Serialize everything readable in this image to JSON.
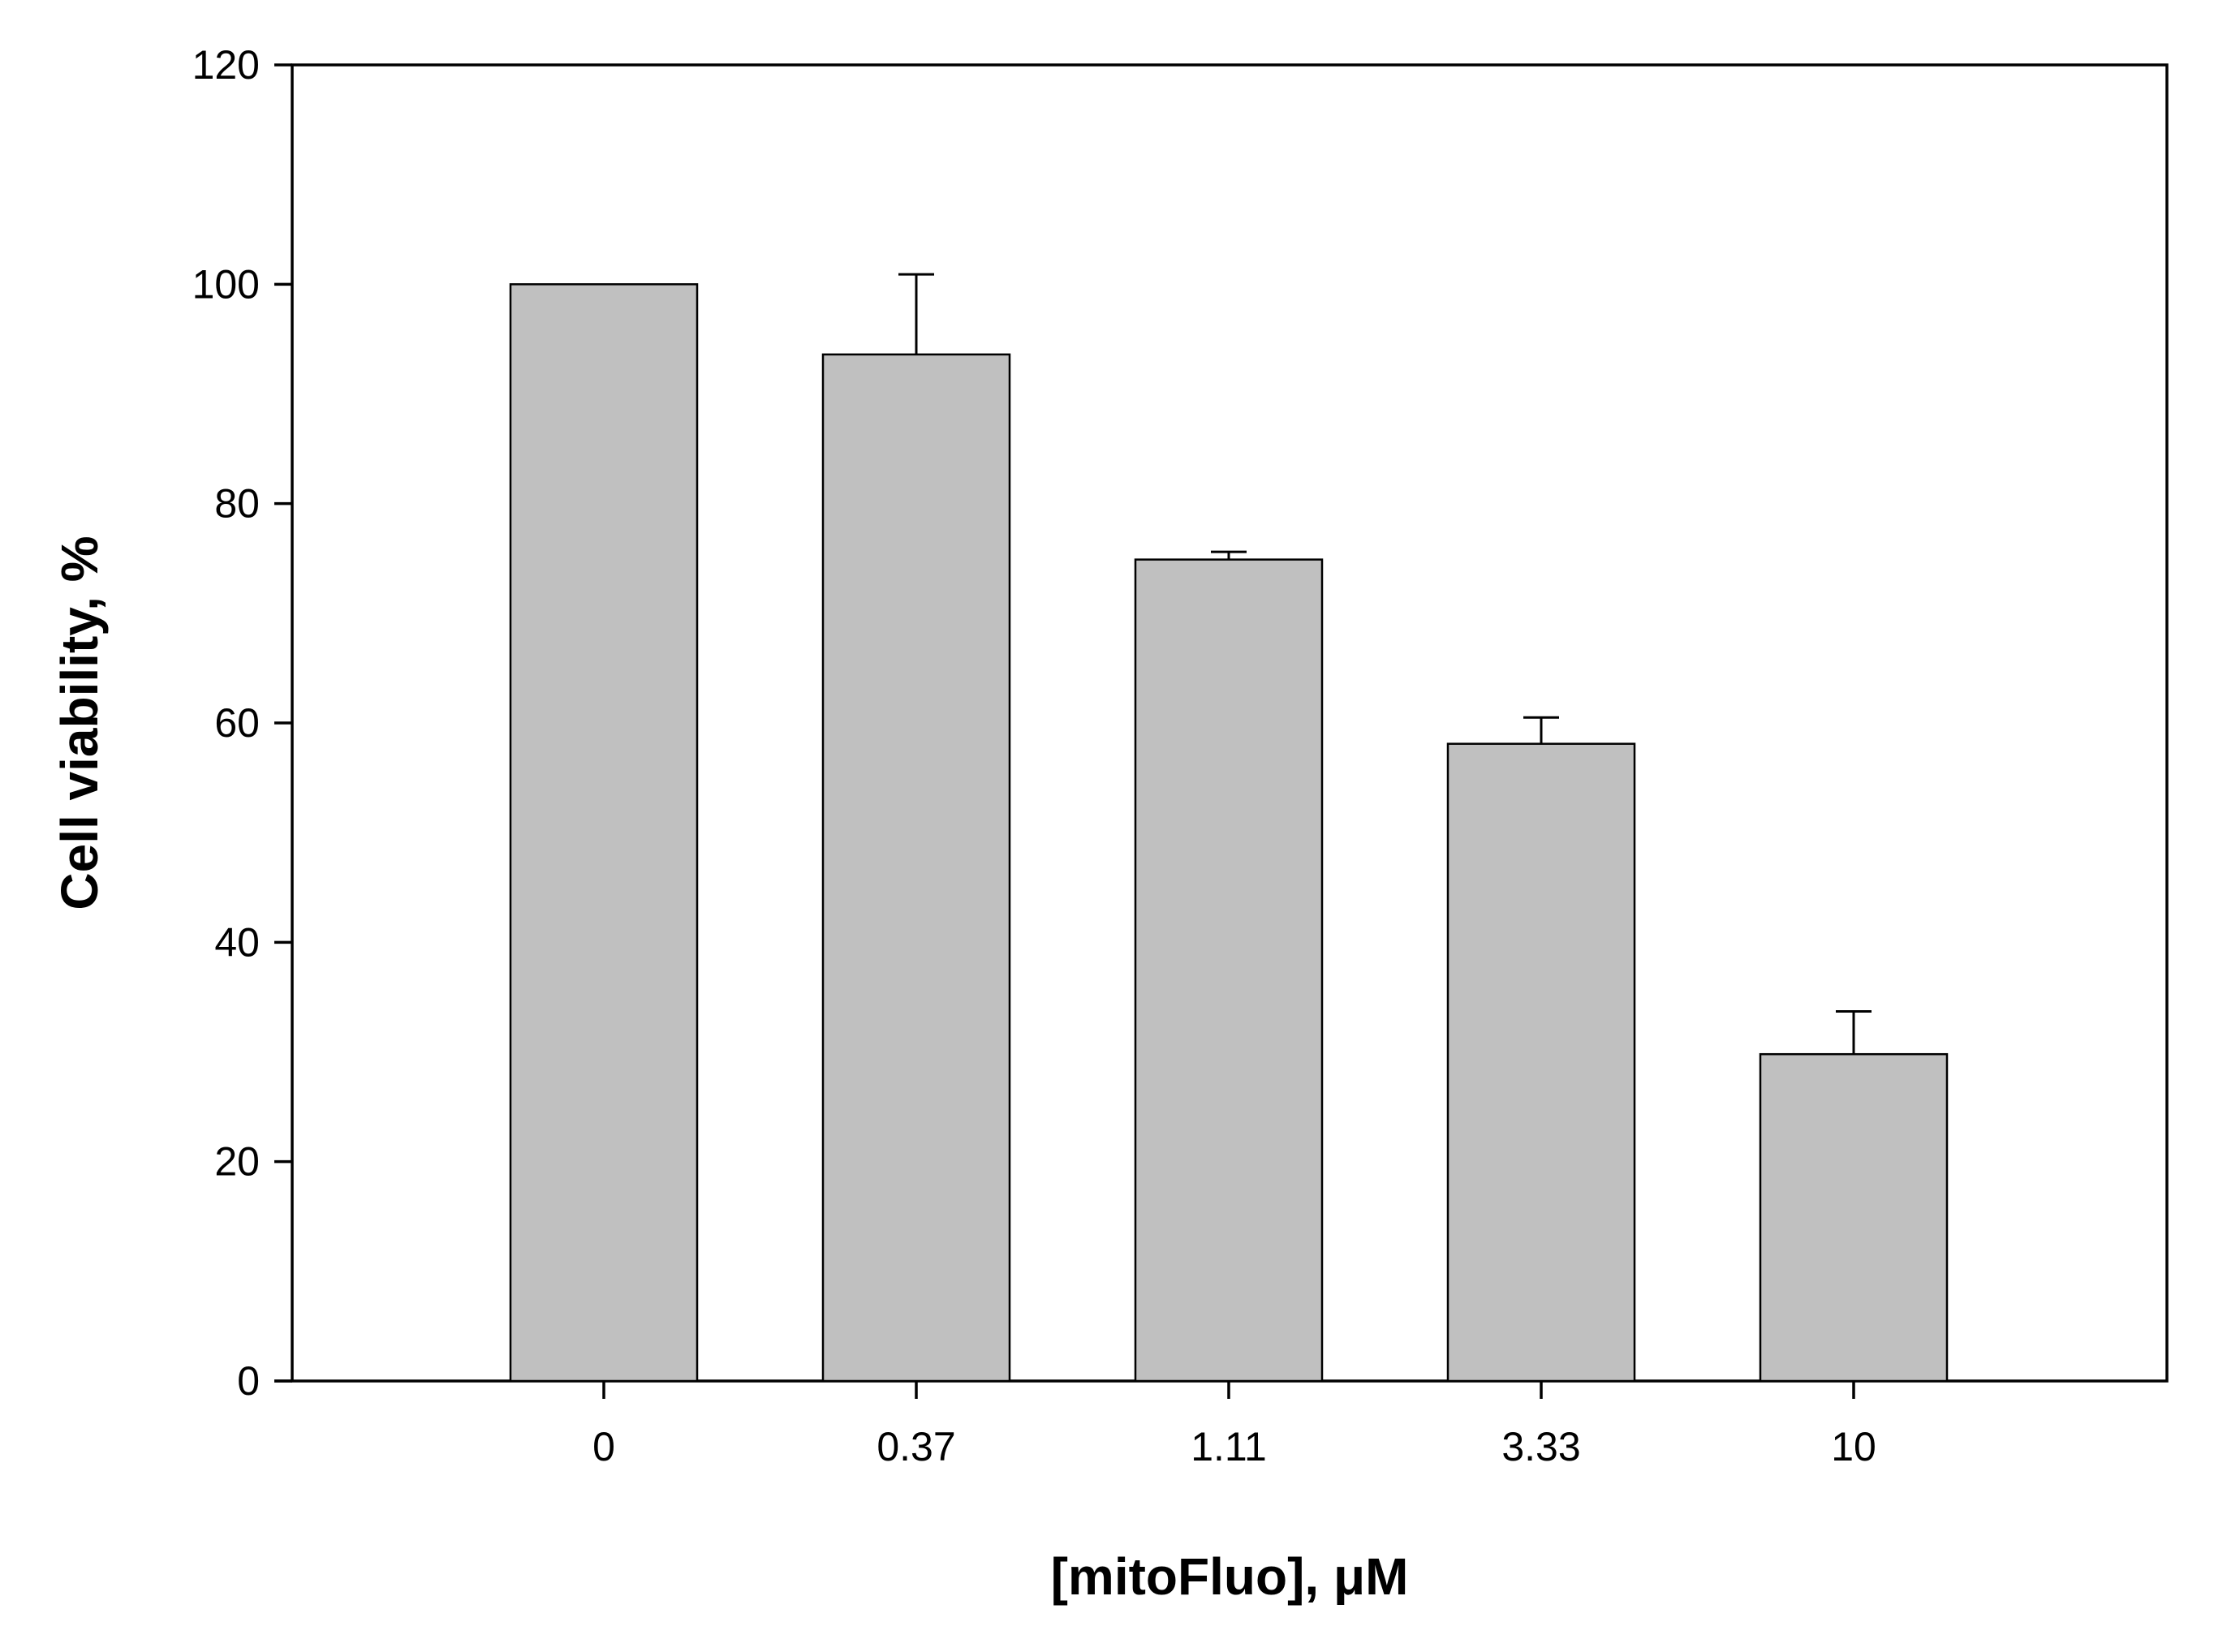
{
  "chart_data": {
    "type": "bar",
    "categories": [
      "0",
      "0.37",
      "1.11",
      "3.33",
      "10"
    ],
    "series": [
      {
        "values": [
          100,
          93.6,
          74.9,
          58.1,
          29.8
        ],
        "error_upper": [
          0,
          7.3,
          0.7,
          2.4,
          3.9
        ]
      }
    ],
    "xlabel": "[mitoFluo], μM",
    "ylabel": "Cell viability, %",
    "ylim": [
      0,
      120
    ],
    "yticks": [
      0,
      20,
      40,
      60,
      80,
      100,
      120
    ],
    "grid": false,
    "legend": "none",
    "bar_color": "#c0c0c0",
    "edge_color": "#000000"
  }
}
